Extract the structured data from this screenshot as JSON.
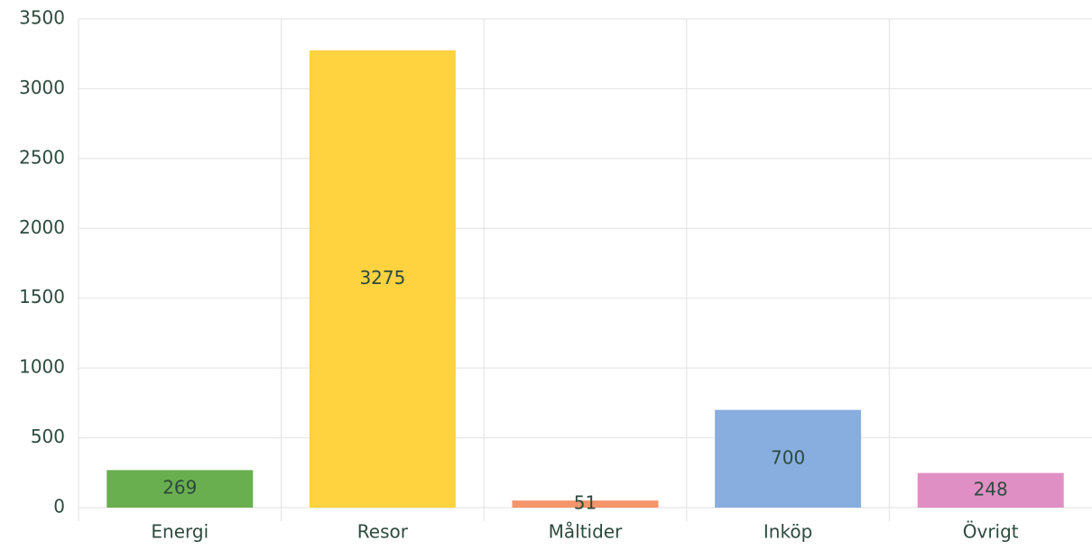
{
  "chart_data": {
    "type": "bar",
    "categories": [
      "Energi",
      "Resor",
      "Måltider",
      "Inköp",
      "Övrigt"
    ],
    "values": [
      269,
      3275,
      51,
      700,
      248
    ],
    "colors": [
      "#6aaf4f",
      "#ffd23f",
      "#f4956a",
      "#88aee0",
      "#e08fc4"
    ],
    "ylim": [
      0,
      3500
    ],
    "yticks": [
      0,
      500,
      1000,
      1500,
      2000,
      2500,
      3000,
      3500
    ],
    "grid": true
  }
}
